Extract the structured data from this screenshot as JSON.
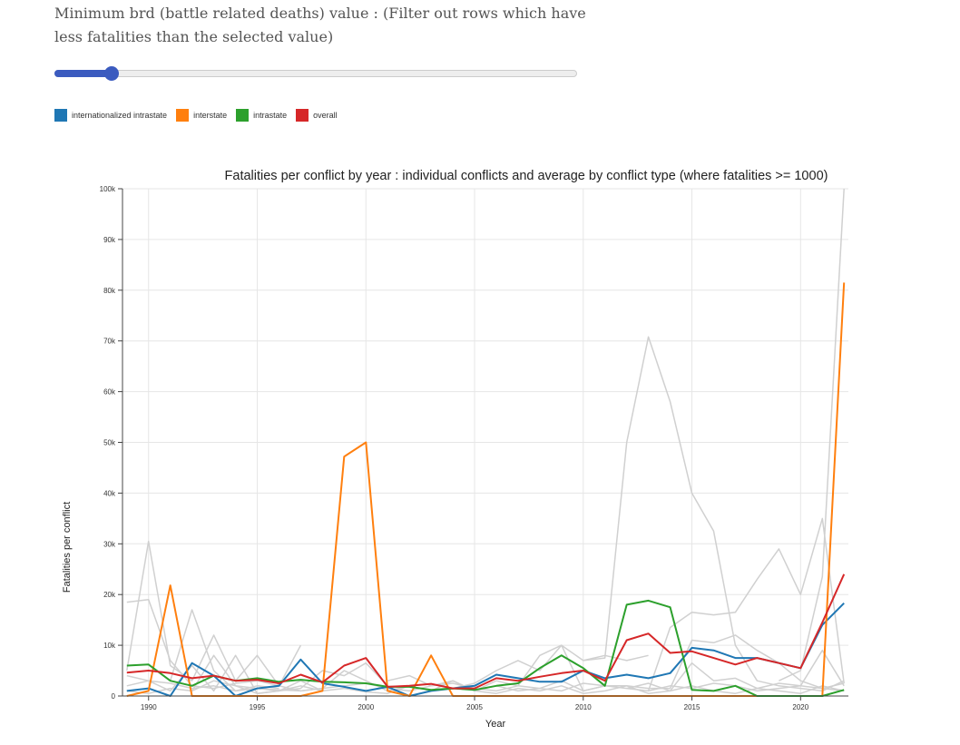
{
  "filter": {
    "label": "Minimum brd (battle related deaths) value : (Filter out rows which have less fatalities than the selected value)",
    "slider_fraction": 0.11
  },
  "legend": {
    "items": [
      {
        "label": "internationalized intrastate",
        "color": "#1f77b4"
      },
      {
        "label": "interstate",
        "color": "#ff7f0e"
      },
      {
        "label": "intrastate",
        "color": "#2ca02c"
      },
      {
        "label": "overall",
        "color": "#d62728"
      }
    ]
  },
  "chart_data": {
    "type": "line",
    "title": "Fatalities per conflict by year : individual conflicts and average by conflict type (where fatalities >= 1000)",
    "xlabel": "Year",
    "ylabel": "Fatalities per conflict",
    "xlim": [
      1988.8,
      2022.2
    ],
    "ylim": [
      0,
      100000
    ],
    "xticks": [
      1990,
      1995,
      2000,
      2005,
      2010,
      2015,
      2020
    ],
    "xtick_labels": [
      "1990",
      "1995",
      "2000",
      "2005",
      "2010",
      "2015",
      "2020"
    ],
    "yticks": [
      0,
      10000,
      20000,
      30000,
      40000,
      50000,
      60000,
      70000,
      80000,
      90000,
      100000
    ],
    "ytick_labels": [
      "0",
      "10k",
      "20k",
      "30k",
      "40k",
      "50k",
      "60k",
      "70k",
      "80k",
      "90k",
      "100k"
    ],
    "grid": true,
    "series": [
      {
        "name": "internationalized intrastate",
        "color": "#1f77b4",
        "x": [
          1989,
          1990,
          1991,
          1992,
          1993,
          1994,
          1995,
          1996,
          1997,
          1998,
          1999,
          2000,
          2001,
          2002,
          2003,
          2004,
          2005,
          2006,
          2007,
          2008,
          2009,
          2010,
          2011,
          2012,
          2013,
          2014,
          2015,
          2016,
          2017,
          2018,
          2019,
          2020,
          2021,
          2022
        ],
        "y": [
          1000,
          1500,
          0,
          6500,
          4000,
          0,
          1500,
          2000,
          7200,
          2500,
          1800,
          1000,
          1800,
          0,
          1000,
          1500,
          2000,
          4200,
          3500,
          2800,
          2800,
          5000,
          3500,
          4200,
          3500,
          4500,
          9500,
          9000,
          7500,
          7500,
          6500,
          5500,
          14000,
          18300
        ]
      },
      {
        "name": "interstate",
        "color": "#ff7f0e",
        "x": [
          1989,
          1990,
          1991,
          1992,
          1993,
          1994,
          1995,
          1996,
          1997,
          1998,
          1999,
          2000,
          2001,
          2002,
          2003,
          2004,
          2005,
          2006,
          2007,
          2008,
          2009,
          2010,
          2011,
          2012,
          2013,
          2014,
          2015,
          2016,
          2017,
          2018,
          2019,
          2020,
          2021,
          2022
        ],
        "y": [
          0,
          1000,
          21800,
          0,
          0,
          0,
          0,
          0,
          0,
          1000,
          47200,
          50000,
          1000,
          0,
          8000,
          0,
          0,
          0,
          0,
          0,
          0,
          0,
          0,
          0,
          0,
          0,
          0,
          0,
          0,
          0,
          0,
          0,
          0,
          81500
        ]
      },
      {
        "name": "intrastate",
        "color": "#2ca02c",
        "x": [
          1989,
          1990,
          1991,
          1992,
          1993,
          1994,
          1995,
          1996,
          1997,
          1998,
          1999,
          2000,
          2001,
          2002,
          2003,
          2004,
          2005,
          2006,
          2007,
          2008,
          2009,
          2010,
          2011,
          2012,
          2013,
          2014,
          2015,
          2016,
          2017,
          2018,
          2019,
          2020,
          2021,
          2022
        ],
        "y": [
          6000,
          6200,
          3000,
          2000,
          4000,
          3000,
          3500,
          2800,
          3200,
          2800,
          2700,
          2500,
          1800,
          1800,
          1200,
          1500,
          1200,
          2000,
          2500,
          5500,
          8000,
          5500,
          2000,
          18000,
          18800,
          17500,
          1200,
          1000,
          2000,
          0,
          0,
          0,
          0,
          1200
        ]
      },
      {
        "name": "overall",
        "color": "#d62728",
        "x": [
          1989,
          1990,
          1991,
          1992,
          1993,
          1994,
          1995,
          1996,
          1997,
          1998,
          1999,
          2000,
          2001,
          2002,
          2003,
          2004,
          2005,
          2006,
          2007,
          2008,
          2009,
          2010,
          2011,
          2012,
          2013,
          2014,
          2015,
          2016,
          2017,
          2018,
          2019,
          2020,
          2021,
          2022
        ],
        "y": [
          4600,
          5000,
          4500,
          3500,
          4000,
          3000,
          3200,
          2500,
          4200,
          2700,
          6000,
          7500,
          1800,
          2000,
          2400,
          1500,
          1500,
          3500,
          3000,
          3800,
          4500,
          5000,
          3000,
          11000,
          12300,
          8500,
          8800,
          7500,
          6200,
          7500,
          6500,
          5500,
          14500,
          24000
        ]
      }
    ],
    "background_series": [
      {
        "color": "#d0d0d0",
        "x": [
          1989,
          1990,
          1991,
          1992,
          1993,
          1994,
          1995,
          1996,
          1997,
          1998,
          1999,
          2000,
          2001,
          2002,
          2003
        ],
        "y": [
          18500,
          19000,
          7000,
          2000,
          1500,
          2500,
          3000,
          2000,
          1000,
          1500,
          5000,
          3000,
          1000,
          2000,
          1000
        ]
      },
      {
        "color": "#d0d0d0",
        "x": [
          1989,
          1990,
          1991,
          1992,
          1993,
          1994,
          1995,
          1996,
          1997
        ],
        "y": [
          5000,
          30500,
          6000,
          3000,
          12000,
          3000,
          8000,
          2000,
          10000
        ]
      },
      {
        "color": "#d0d0d0",
        "x": [
          1991,
          1992,
          1993,
          1994,
          1995,
          1996
        ],
        "y": [
          3000,
          17000,
          5000,
          1000,
          2000,
          1500
        ]
      },
      {
        "color": "#d0d0d0",
        "x": [
          2010,
          2011,
          2012,
          2013,
          2014,
          2015,
          2016,
          2017,
          2018,
          2019,
          2020,
          2021,
          2022
        ],
        "y": [
          7000,
          7500,
          50000,
          70800,
          58000,
          40000,
          32500,
          10000,
          3000,
          2000,
          1500,
          1000,
          3000
        ]
      },
      {
        "color": "#d0d0d0",
        "x": [
          2013,
          2014,
          2015,
          2016,
          2017,
          2018,
          2019,
          2020,
          2021,
          2022
        ],
        "y": [
          1000,
          13500,
          16500,
          16000,
          16500,
          23000,
          29000,
          20000,
          35000,
          2500
        ]
      },
      {
        "color": "#d0d0d0",
        "x": [
          2019,
          2020,
          2021,
          2022
        ],
        "y": [
          3000,
          5000,
          23500,
          100000
        ]
      },
      {
        "color": "#d0d0d0",
        "x": [
          2004,
          2005,
          2006,
          2007,
          2008,
          2009,
          2010,
          2011,
          2012,
          2013
        ],
        "y": [
          1500,
          2500,
          5000,
          7000,
          5000,
          10000,
          7000,
          8000,
          7000,
          8000
        ]
      },
      {
        "color": "#d0d0d0",
        "x": [
          2005,
          2006,
          2007,
          2008,
          2009,
          2010,
          2011,
          2012,
          2013,
          2014,
          2015,
          2016,
          2017,
          2018,
          2019,
          2020,
          2021,
          2022
        ],
        "y": [
          1000,
          3000,
          2000,
          8000,
          10000,
          1000,
          2000,
          2000,
          1500,
          1500,
          11000,
          10500,
          12000,
          9000,
          6500,
          3000,
          1500,
          1000
        ]
      },
      {
        "color": "#d0d0d0",
        "x": [
          2012,
          2013,
          2014,
          2015,
          2016,
          2017,
          2018,
          2019,
          2020,
          2021,
          2022
        ],
        "y": [
          1500,
          2500,
          1000,
          6500,
          3000,
          3500,
          1500,
          2500,
          2000,
          9000,
          2000
        ]
      },
      {
        "color": "#d0d0d0",
        "x": [
          1992,
          1993,
          1994,
          1995,
          1996,
          1997,
          1998,
          1999,
          2000,
          2001
        ],
        "y": [
          1000,
          8000,
          2000,
          1500,
          1000,
          1500,
          5000,
          4000,
          6500,
          2000
        ]
      },
      {
        "color": "#d0d0d0",
        "x": [
          1989,
          1990,
          1991,
          1992,
          1993,
          1994,
          1995,
          1996,
          1997,
          1998,
          1999,
          2000,
          2001,
          2002,
          2003,
          2004,
          2005,
          2006,
          2007,
          2008,
          2009,
          2010,
          2011,
          2012,
          2013,
          2014,
          2015,
          2016,
          2017,
          2018,
          2019,
          2020,
          2021,
          2022
        ],
        "y": [
          2000,
          3000,
          2500,
          1500,
          2000,
          1000,
          1500,
          1200,
          1000,
          1500,
          2000,
          2500,
          1500,
          1000,
          2000,
          2500,
          1500,
          1000,
          2000,
          1500,
          1000,
          2500,
          2000,
          1500,
          1000,
          2000,
          1500,
          2500,
          2000,
          1000,
          1500,
          2000,
          1500,
          2500
        ]
      },
      {
        "color": "#d0d0d0",
        "x": [
          1989,
          1990,
          1991,
          1992,
          1993,
          1994,
          1995,
          1996,
          1997,
          1998,
          1999,
          2000,
          2001,
          2002,
          2003,
          2004,
          2005,
          2006,
          2007,
          2008,
          2009,
          2010,
          2011,
          2012,
          2013,
          2014,
          2015,
          2016,
          2017,
          2018,
          2019,
          2020,
          2021,
          2022
        ],
        "y": [
          1000,
          500,
          1500,
          1000,
          3000,
          2000,
          500,
          1000,
          2000,
          1000,
          1500,
          800,
          500,
          2000,
          1000,
          3000,
          1000,
          500,
          1500,
          1000,
          2000,
          500,
          1000,
          2000,
          500,
          1000,
          2000,
          1000,
          500,
          1500,
          1000,
          500,
          2000,
          1000
        ]
      },
      {
        "color": "#d0d0d0",
        "x": [
          1989,
          1990,
          1991,
          1992,
          1993,
          1994,
          1995,
          1996,
          1997,
          1998
        ],
        "y": [
          4000,
          3000,
          1000,
          6000,
          1000,
          8000,
          500,
          1000,
          3000,
          1000
        ]
      },
      {
        "color": "#d0d0d0",
        "x": [
          2001,
          2002,
          2003,
          2004,
          2005,
          2006,
          2007,
          2008,
          2009,
          2010,
          2011
        ],
        "y": [
          3000,
          4000,
          2000,
          3000,
          1000,
          2000,
          1000,
          1500,
          3000,
          1000,
          2000
        ]
      }
    ]
  }
}
